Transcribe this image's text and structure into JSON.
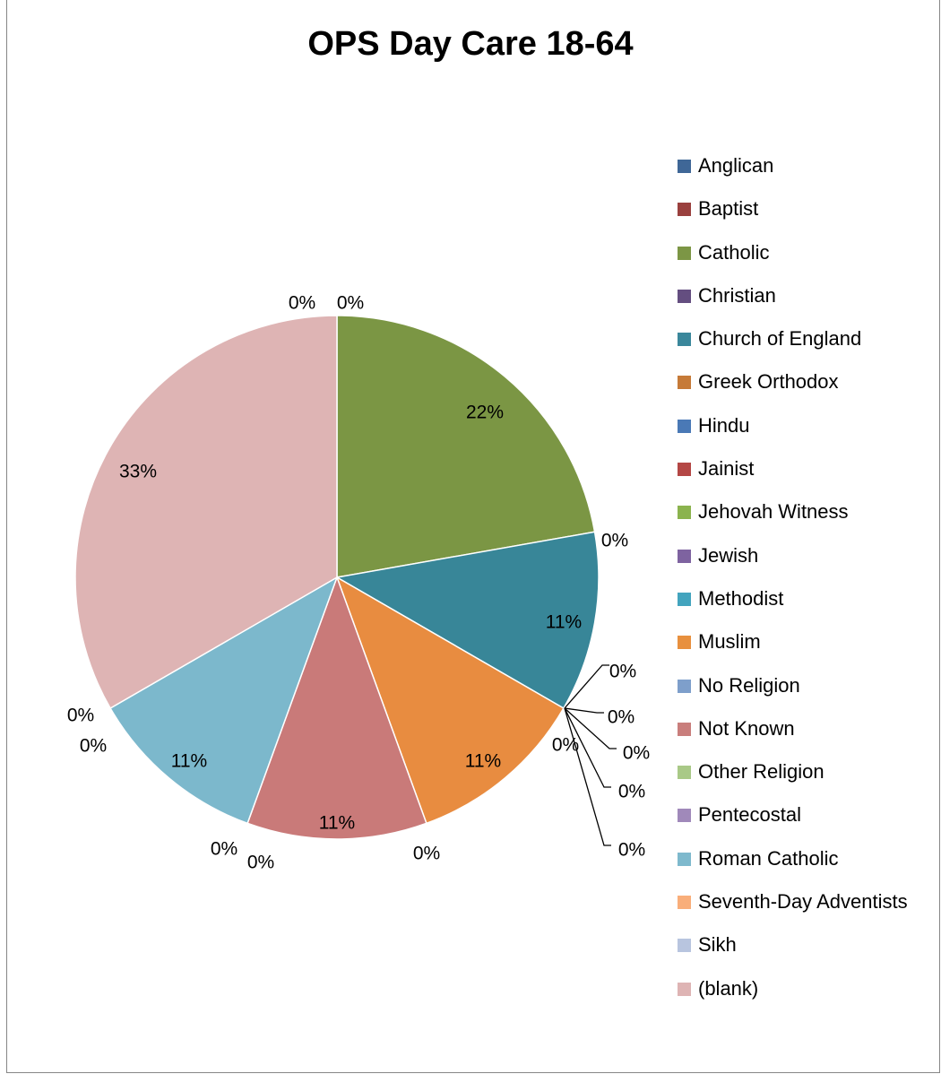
{
  "chart_data": {
    "type": "pie",
    "title": "OPS Day Care 18-64",
    "legend_position": "right",
    "slices": [
      {
        "name": "Anglican",
        "value": 0,
        "label": "0%",
        "color": "#4F81BD"
      },
      {
        "name": "Baptist",
        "value": 0,
        "label": "0%",
        "color": "#C0504D"
      },
      {
        "name": "Catholic",
        "value": 22,
        "label": "22%",
        "color": "#9BBB59"
      },
      {
        "name": "Christian",
        "value": 0,
        "label": "0%",
        "color": "#8064A2"
      },
      {
        "name": "Church of England",
        "value": 11,
        "label": "11%",
        "color": "#4BACC6"
      },
      {
        "name": "Greek Orthodox",
        "value": 0,
        "label": "0%",
        "color": "#F79646"
      },
      {
        "name": "Hindu",
        "value": 0,
        "label": "0%",
        "color": "#2C4D75"
      },
      {
        "name": "Jainist",
        "value": 0,
        "label": "0%",
        "color": "#772C2A"
      },
      {
        "name": "Jehovah Witness",
        "value": 0,
        "label": "0%",
        "color": "#5F7530"
      },
      {
        "name": "Jewish",
        "value": 0,
        "label": "0%",
        "color": "#4D3B62"
      },
      {
        "name": "Methodist",
        "value": 0,
        "label": "0%",
        "color": "#276A7C"
      },
      {
        "name": "Muslim",
        "value": 11,
        "label": "11%",
        "color": "#B65708"
      },
      {
        "name": "No Religion",
        "value": 0,
        "label": "0%",
        "color": "#729ACA"
      },
      {
        "name": "Not Known",
        "value": 11,
        "label": "11%",
        "color": "#CD7371"
      },
      {
        "name": "Other Religion",
        "value": 0,
        "label": "0%",
        "color": "#AFC97A"
      },
      {
        "name": "Pentecostal",
        "value": 0,
        "label": "0%",
        "color": "#9983B5"
      },
      {
        "name": "Roman Catholic",
        "value": 11,
        "label": "11%",
        "color": "#6FBDD1"
      },
      {
        "name": "Seventh-Day Adventists",
        "value": 0,
        "label": "0%",
        "color": "#F9AB6B"
      },
      {
        "name": "Sikh",
        "value": 0,
        "label": "0%",
        "color": "#B9CCE4"
      },
      {
        "name": "(blank)",
        "value": 33,
        "label": "33%",
        "color": "#DEB4B4"
      }
    ],
    "legend_colors": [
      "#3F6797",
      "#9A403E",
      "#7C9645",
      "#644E80",
      "#3A879B",
      "#C67A38",
      "#4A79B6",
      "#B44745",
      "#8BB34E",
      "#7E63A0",
      "#43A4BE",
      "#E8903E",
      "#7E9FCB",
      "#C97E7C",
      "#A9C987",
      "#A089BA",
      "#7EB9CD",
      "#F9AE7A",
      "#B8C5DF",
      "#DEB4B4"
    ],
    "rendered_colors": {
      "Catholic": "#7B9644",
      "Church of England": "#388698",
      "Muslim": "#E88C40",
      "Not Known": "#C97A79",
      "Roman Catholic": "#7CB8CC",
      "(blank)": "#DEB4B4"
    }
  }
}
